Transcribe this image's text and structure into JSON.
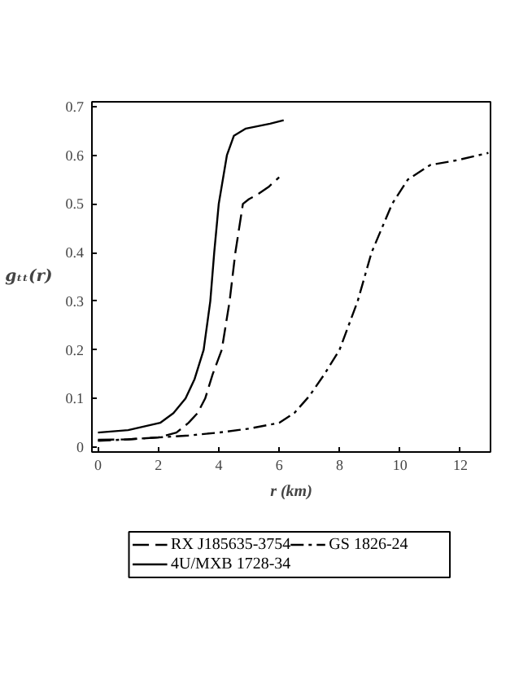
{
  "chart_data": {
    "type": "line",
    "xlabel": "r (km)",
    "ylabel": "gₜₜ(r)",
    "xlim": [
      -0.2,
      13
    ],
    "ylim": [
      -0.01,
      0.71
    ],
    "xticks": [
      0,
      2,
      4,
      6,
      8,
      10,
      12
    ],
    "yticks": [
      0,
      0.1,
      0.2,
      0.3,
      0.4,
      0.5,
      0.6,
      0.7
    ],
    "grid": false,
    "legend": "bottom",
    "marker": "none",
    "series": [
      {
        "name": "RX J185635-3754",
        "color": "#000000",
        "line_style": "dashed",
        "x": [
          0,
          1,
          2,
          2.6,
          3.0,
          3.3,
          3.55,
          3.8,
          4.1,
          4.36,
          4.55,
          4.7,
          4.8,
          5.0,
          5.3,
          5.65,
          6.0
        ],
        "values": [
          0.015,
          0.016,
          0.02,
          0.03,
          0.05,
          0.07,
          0.1,
          0.15,
          0.2,
          0.3,
          0.4,
          0.46,
          0.5,
          0.51,
          0.52,
          0.535,
          0.555
        ]
      },
      {
        "name": "4U/MXB 1728-34",
        "color": "#000000",
        "line_style": "solid",
        "x": [
          0,
          1,
          2.06,
          2.5,
          2.9,
          3.2,
          3.5,
          3.72,
          3.85,
          4.0,
          4.27,
          4.5,
          4.9,
          5.3,
          5.7,
          6.15
        ],
        "values": [
          0.03,
          0.035,
          0.05,
          0.07,
          0.1,
          0.14,
          0.2,
          0.3,
          0.4,
          0.5,
          0.6,
          0.64,
          0.655,
          0.66,
          0.665,
          0.672
        ]
      },
      {
        "name": "GS 1826-24",
        "color": "#000000",
        "line_style": "dashdot",
        "x": [
          0,
          1,
          2,
          3,
          4,
          5,
          6,
          6.5,
          7,
          7.5,
          8,
          8.6,
          9.06,
          9.4,
          9.74,
          10.26,
          11,
          11.9,
          12.93
        ],
        "values": [
          0.013,
          0.016,
          0.02,
          0.024,
          0.03,
          0.038,
          0.05,
          0.07,
          0.105,
          0.15,
          0.2,
          0.3,
          0.4,
          0.45,
          0.5,
          0.55,
          0.58,
          0.59,
          0.605
        ]
      }
    ]
  }
}
